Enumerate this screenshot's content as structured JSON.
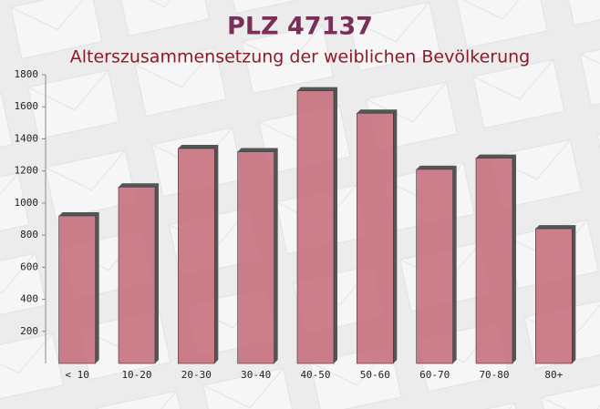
{
  "chart_data": {
    "type": "bar",
    "title": "PLZ 47137",
    "subtitle": "Alterszusammensetzung der weiblichen Bevölkerung",
    "categories": [
      "< 10",
      "10-20",
      "20-30",
      "30-40",
      "40-50",
      "50-60",
      "60-70",
      "70-80",
      "80+"
    ],
    "values": [
      920,
      1100,
      1340,
      1320,
      1700,
      1560,
      1210,
      1280,
      840
    ],
    "color": "#c46878",
    "ylim": [
      0,
      1800
    ],
    "yticks": [
      200,
      400,
      600,
      800,
      1000,
      1200,
      1400,
      1600,
      1800
    ],
    "grid": false
  }
}
